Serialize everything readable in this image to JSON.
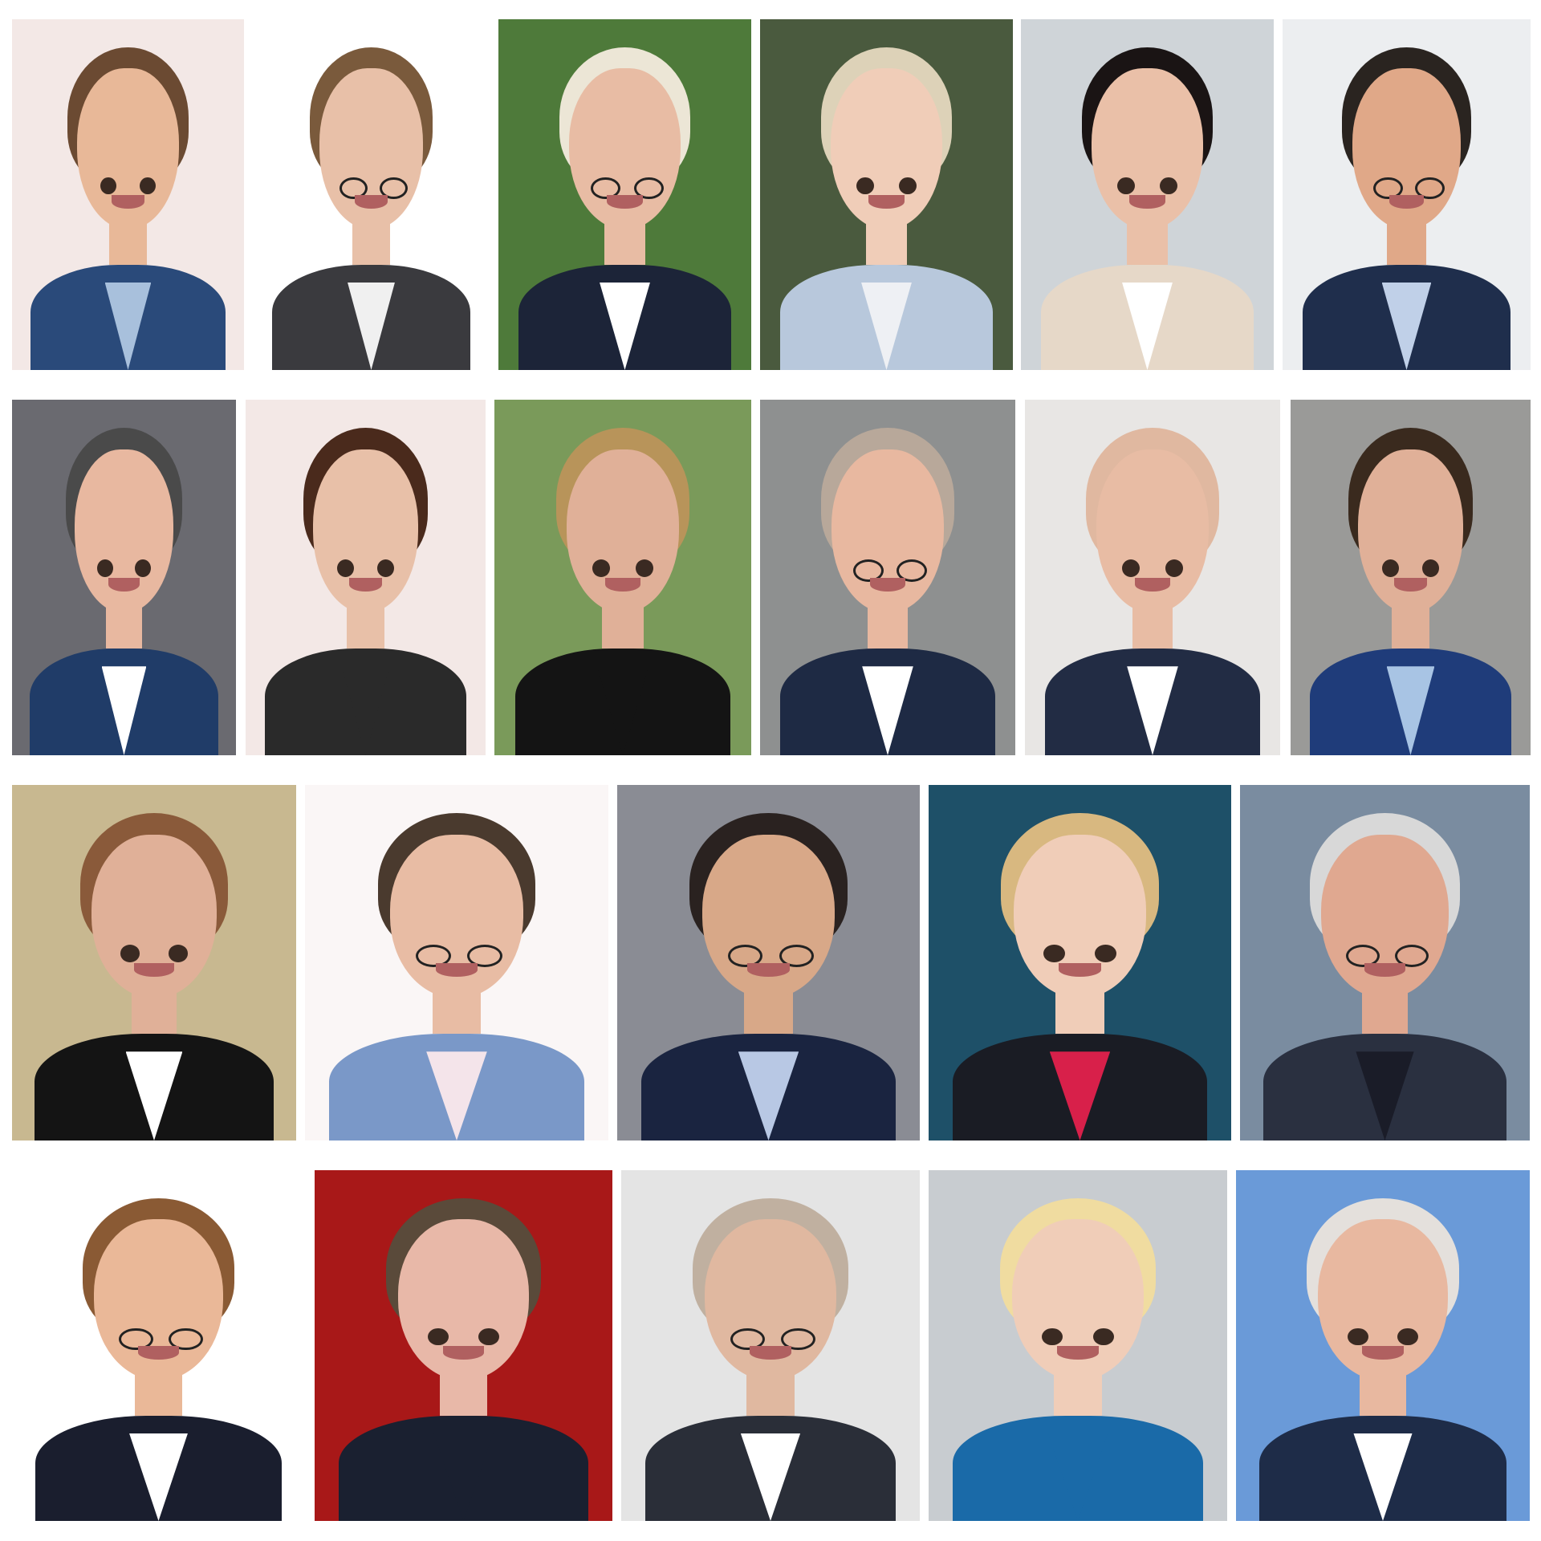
{
  "collage": {
    "rows": 4,
    "tiles": [
      {
        "row": 1,
        "bg": "#f3e8e6",
        "hair": "#6b4a32",
        "skin": "#e8b898",
        "suit": "#2a4a7a",
        "shirt": "#a8c0dc",
        "glasses": false
      },
      {
        "row": 1,
        "bg": "#ffffff",
        "hair": "#7a5a3c",
        "skin": "#e8c0a8",
        "suit": "#3a3a3e",
        "shirt": "#f0f0f0",
        "glasses": true
      },
      {
        "row": 1,
        "bg": "#4e7a3a",
        "hair": "#ece6d6",
        "skin": "#e8bca4",
        "suit": "#1c2438",
        "shirt": "#ffffff",
        "glasses": true
      },
      {
        "row": 1,
        "bg": "#4a5a3e",
        "hair": "#ddd2b8",
        "skin": "#f0cdb8",
        "suit": "#b8c8dc",
        "shirt": "#eef0f4",
        "glasses": false
      },
      {
        "row": 1,
        "bg": "#cfd4d8",
        "hair": "#1a1414",
        "skin": "#eac0a8",
        "suit": "#e6d8c8",
        "shirt": "#ffffff",
        "glasses": false
      },
      {
        "row": 1,
        "bg": "#eceef0",
        "hair": "#2a2420",
        "skin": "#e0a888",
        "suit": "#1f2e4c",
        "shirt": "#c0d0e8",
        "glasses": true
      },
      {
        "row": 2,
        "bg": "#6a6a70",
        "hair": "#4a4a4a",
        "skin": "#e8b8a0",
        "suit": "#203c68",
        "shirt": "#ffffff",
        "glasses": false
      },
      {
        "row": 2,
        "bg": "#f3e8e6",
        "hair": "#4a2a1c",
        "skin": "#e8c0a8",
        "suit": "#2a2a2a",
        "shirt": "#2a2a2a",
        "glasses": false
      },
      {
        "row": 2,
        "bg": "#7a9a5a",
        "hair": "#b8945a",
        "skin": "#e0b098",
        "suit": "#141414",
        "shirt": "#141414",
        "glasses": false
      },
      {
        "row": 2,
        "bg": "#8e9090",
        "hair": "#b8a89a",
        "skin": "#e8b8a0",
        "suit": "#1e2a44",
        "shirt": "#ffffff",
        "glasses": true
      },
      {
        "row": 2,
        "bg": "#e8e6e4",
        "hair": "#e0b8a0",
        "skin": "#e8bca4",
        "suit": "#222c44",
        "shirt": "#ffffff",
        "glasses": false
      },
      {
        "row": 2,
        "bg": "#9a9a98",
        "hair": "#3a2a1e",
        "skin": "#e0b098",
        "suit": "#1f3c7a",
        "shirt": "#a8c4e4",
        "glasses": false
      },
      {
        "row": 3,
        "bg": "#c8b890",
        "hair": "#8a5a3a",
        "skin": "#e0b098",
        "suit": "#141414",
        "shirt": "#ffffff",
        "glasses": false
      },
      {
        "row": 3,
        "bg": "#faf6f6",
        "hair": "#4a3a2e",
        "skin": "#e8bca4",
        "suit": "#7a98c8",
        "shirt": "#f4e4ea",
        "glasses": true
      },
      {
        "row": 3,
        "bg": "#8a8c94",
        "hair": "#2a2220",
        "skin": "#d8a888",
        "suit": "#1a2440",
        "shirt": "#b8c8e4",
        "glasses": true
      },
      {
        "row": 3,
        "bg": "#1e5068",
        "hair": "#d8b880",
        "skin": "#f0cdb8",
        "suit": "#1a1c24",
        "shirt": "#d8204a",
        "glasses": false
      },
      {
        "row": 3,
        "bg": "#7a8ca0",
        "hair": "#d8d8d8",
        "skin": "#e0a890",
        "suit": "#2a3040",
        "shirt": "#1a1c28",
        "glasses": true
      },
      {
        "row": 4,
        "bg": "#ffffff",
        "hair": "#8a5a34",
        "skin": "#eab898",
        "suit": "#1a1e2e",
        "shirt": "#ffffff",
        "glasses": true
      },
      {
        "row": 4,
        "bg": "#a81818",
        "hair": "#5a4a3a",
        "skin": "#e8b8a8",
        "suit": "#1a2030",
        "shirt": "#1a2030",
        "glasses": false
      },
      {
        "row": 4,
        "bg": "#e4e4e4",
        "hair": "#c0b0a0",
        "skin": "#e0b8a0",
        "suit": "#2a2e38",
        "shirt": "#ffffff",
        "glasses": true
      },
      {
        "row": 4,
        "bg": "#c8ccd0",
        "hair": "#f0dca0",
        "skin": "#f0cdb8",
        "suit": "#1a6aa8",
        "shirt": "#1a6aa8",
        "glasses": false
      },
      {
        "row": 4,
        "bg": "#6a9ad8",
        "hair": "#e4e0dc",
        "skin": "#e8b8a0",
        "suit": "#1e2c48",
        "shirt": "#ffffff",
        "glasses": false
      }
    ]
  }
}
